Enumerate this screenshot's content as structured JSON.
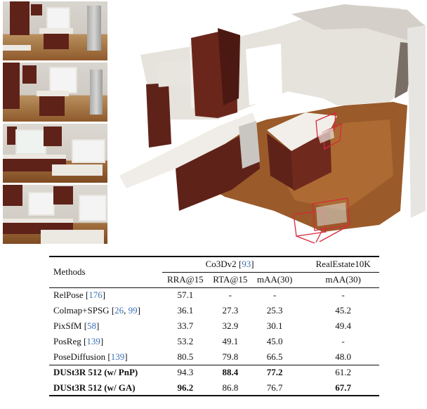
{
  "table": {
    "headers": {
      "methods": "Methods",
      "group1": "Co3Dv2 [93]",
      "group1_name": "Co3Dv2 [",
      "group1_cite": "93",
      "group2": "RealEstate10K",
      "cols": [
        "RRA@15",
        "RTA@15",
        "mAA(30)",
        "mAA(30)"
      ]
    },
    "rows": [
      {
        "name": "RelPose [",
        "cite": "176",
        "tail": "]",
        "values": [
          "57.1",
          "-",
          "-",
          "-"
        ],
        "bold": [
          false,
          false,
          false,
          false
        ]
      },
      {
        "name": "Colmap+SPSG [",
        "cite": "26",
        "cite2": "99",
        "tail": "]",
        "values": [
          "36.1",
          "27.3",
          "25.3",
          "45.2"
        ],
        "bold": [
          false,
          false,
          false,
          false
        ]
      },
      {
        "name": "PixSfM [",
        "cite": "58",
        "tail": "]",
        "values": [
          "33.7",
          "32.9",
          "30.1",
          "49.4"
        ],
        "bold": [
          false,
          false,
          false,
          false
        ]
      },
      {
        "name": "PosReg [",
        "cite": "139",
        "tail": "]",
        "values": [
          "53.2",
          "49.1",
          "45.0",
          "-"
        ],
        "bold": [
          false,
          false,
          false,
          false
        ]
      },
      {
        "name": "PoseDiffusion [",
        "cite": "139",
        "tail": "]",
        "values": [
          "80.5",
          "79.8",
          "66.5",
          "48.0"
        ],
        "bold": [
          false,
          false,
          false,
          false
        ]
      },
      {
        "name": "DUSt3R 512 (w/ PnP)",
        "values": [
          "94.3",
          "88.4",
          "77.2",
          "61.2"
        ],
        "bold": [
          false,
          true,
          true,
          false
        ]
      },
      {
        "name": "DUSt3R 512 (w/ GA)",
        "values": [
          "96.2",
          "86.8",
          "76.7",
          "67.7"
        ],
        "bold": [
          true,
          false,
          false,
          true
        ]
      }
    ]
  },
  "colors": {
    "citation": "#3a6fb5",
    "camera_frustum": "#d8283c",
    "cabinet": "#5e2219",
    "floor": "#9a5a2a"
  }
}
